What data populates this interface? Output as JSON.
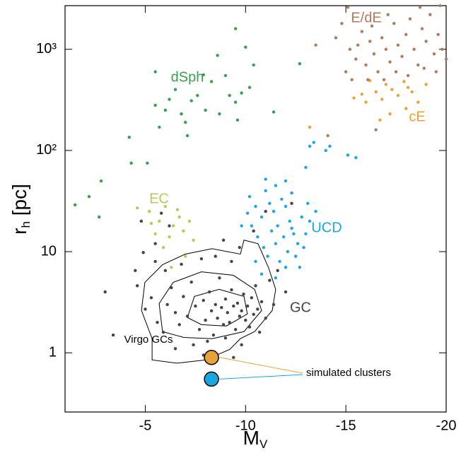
{
  "chart_data": {
    "type": "scatter",
    "xlabel": [
      "M",
      "V"
    ],
    "ylabel": [
      "r",
      "h",
      " [pc]"
    ],
    "xlim": [
      -1,
      -20
    ],
    "ylim": [
      0.26,
      2700
    ],
    "log_y": true,
    "xticks": [
      -5,
      -10,
      -15,
      -20
    ],
    "yticks": [
      1,
      10,
      {
        "value": 100,
        "label": "10²"
      },
      {
        "value": 1000,
        "label": "10³"
      }
    ],
    "series": [
      {
        "name": "dSph",
        "color": "#3a9e4f",
        "x": [
          -1.5,
          -2.8,
          -2.7,
          -2.2,
          -4.3,
          -4.2,
          -5.1,
          -5.7,
          -6.2,
          -6.5,
          -6.8,
          -7,
          -7.3,
          -7.6,
          -7.9,
          -8.3,
          -8.6,
          -8.7,
          -9.2,
          -9.5,
          -9.5,
          -10,
          -9.8,
          -10.4,
          -8,
          -6,
          -5.5,
          -7.1,
          -5.5,
          -9,
          -12.7,
          -11.4,
          -10.2,
          -9.6
        ],
        "y": [
          29,
          50,
          22,
          35,
          75,
          135,
          75,
          170,
          320,
          400,
          230,
          190,
          310,
          350,
          560,
          480,
          870,
          230,
          350,
          300,
          1600,
          1050,
          370,
          700,
          250,
          250,
          280,
          140,
          600,
          550,
          720,
          240,
          420,
          200
        ]
      },
      {
        "name": "EC",
        "color": "#b8c95a",
        "x": [
          -4.6,
          -5.2,
          -5.5,
          -5.7,
          -6,
          -6.2,
          -6.4,
          -6.7,
          -6.9,
          -7.2,
          -7.4,
          -5.9,
          -6.6,
          -7.0,
          -5.3,
          -6.3
        ],
        "y": [
          27,
          25,
          15,
          20,
          28,
          14,
          18,
          22,
          16,
          20,
          13,
          11,
          26,
          9,
          19,
          7
        ]
      },
      {
        "name": "GC",
        "color": "#444444",
        "x": [
          -3.0,
          -3.4,
          -4.6,
          -5.0,
          -5.3,
          -5.6,
          -5.9,
          -6.1,
          -6.3,
          -6.5,
          -6.7,
          -6.9,
          -7.1,
          -7.3,
          -7.5,
          -7.7,
          -7.9,
          -8.0,
          -8.2,
          -8.3,
          -8.4,
          -8.5,
          -8.6,
          -8.7,
          -8.8,
          -8.9,
          -9.0,
          -9.1,
          -9.2,
          -9.3,
          -9.4,
          -9.5,
          -9.6,
          -9.7,
          -9.8,
          -9.9,
          -10.0,
          -10.1,
          -10.2,
          -10.3,
          -10.4,
          -10.5,
          -10.6,
          -10.7,
          -10.8,
          -11.0,
          -11.2,
          -11.4,
          -11.6,
          -12.0,
          -8.1,
          -9.0,
          -9.8,
          -7.4,
          -6.0,
          -5.5,
          -6.8,
          -7.8,
          -8.5,
          -9.3,
          -4.5,
          -5.5,
          -6.2,
          -4.8,
          -5.8,
          -4.9,
          -8.9,
          -9.7,
          -10.4,
          -11.0,
          -12.3,
          -7.9,
          -9.4,
          -6.5
        ],
        "y": [
          4.0,
          1.5,
          4.6,
          2.7,
          3.5,
          2.0,
          1.6,
          3.0,
          4.4,
          2.5,
          1.9,
          3.6,
          2.3,
          5.0,
          2.9,
          1.7,
          3.3,
          2.1,
          4.0,
          2.6,
          1.5,
          3.0,
          2.2,
          5.5,
          2.8,
          1.9,
          3.4,
          2.5,
          2.0,
          4.2,
          2.9,
          1.7,
          3.1,
          2.3,
          2.6,
          3.8,
          2.1,
          2.9,
          1.8,
          3.5,
          2.4,
          4.6,
          2.7,
          1.6,
          3.2,
          2.2,
          5.2,
          3.0,
          6.5,
          4.0,
          1.3,
          1.4,
          1.2,
          1.2,
          6.5,
          8.0,
          7.5,
          8.5,
          9.0,
          8.0,
          6.5,
          12,
          18,
          20,
          24,
          9.8,
          13,
          11,
          16,
          25,
          30,
          0.95,
          0.9,
          1.1
        ]
      },
      {
        "name": "UCD",
        "color": "#1aa7e0",
        "x": [
          -10.2,
          -10.5,
          -10.8,
          -11,
          -11.2,
          -11.4,
          -11.6,
          -11.8,
          -12,
          -12.2,
          -12.4,
          -12.6,
          -12.8,
          -10.6,
          -10.9,
          -11.1,
          -11.3,
          -11.5,
          -11.7,
          -11.9,
          -12.1,
          -12.3,
          -12.5,
          -12.7,
          -12.9,
          -13,
          -13.2,
          -10.3,
          -10.1,
          -11,
          -12,
          -12.3,
          -11.5,
          -13.1,
          -13.5,
          -13,
          -14,
          -13.2,
          -15.5,
          -15.1,
          -14.2,
          -13.4,
          -9.8,
          -10.5,
          -10.8,
          -11.5,
          -12
        ],
        "y": [
          35,
          28,
          22,
          40,
          30,
          25,
          18,
          33,
          28,
          20,
          15,
          12,
          22,
          14,
          11,
          9,
          16,
          12,
          8,
          14,
          10,
          17,
          9,
          7,
          11,
          15,
          20,
          18,
          24,
          52,
          50,
          38,
          45,
          30,
          25,
          68,
          100,
          110,
          85,
          90,
          110,
          120,
          18,
          8,
          6,
          5.5,
          7
        ]
      },
      {
        "name": "cE",
        "color": "#e8a23a",
        "x": [
          -16.2,
          -16.5,
          -16.8,
          -17,
          -17.3,
          -17.6,
          -17.9,
          -18.1,
          -18.3,
          -18.6,
          -16,
          -15.4,
          -17.2,
          -18,
          -19,
          -16.7,
          -15.8,
          -13.2
        ],
        "y": [
          490,
          380,
          320,
          450,
          400,
          350,
          480,
          420,
          380,
          300,
          300,
          330,
          230,
          260,
          450,
          200,
          360,
          170
        ]
      },
      {
        "name": "E/dE",
        "color": "#b07a5e",
        "x": [
          -15.2,
          -15.5,
          -15.8,
          -16,
          -16.2,
          -16.4,
          -16.6,
          -16.8,
          -17,
          -17.2,
          -17.4,
          -17.6,
          -17.8,
          -18,
          -18.2,
          -18.4,
          -18.6,
          -18.8,
          -19,
          -19.2,
          -19.4,
          -19.6,
          -19.8,
          -20,
          -15,
          -15.3,
          -15.6,
          -16.1,
          -16.9,
          -17.5,
          -18.1,
          -18.9,
          -19.5,
          -16.3,
          -17.1,
          -18.7,
          -19.7,
          -15.1,
          -14.5,
          -13.5,
          -14.8,
          -16.5,
          -14.1
        ],
        "y": [
          1000,
          800,
          1500,
          700,
          1200,
          900,
          600,
          1300,
          1000,
          750,
          1800,
          1100,
          850,
          1400,
          2000,
          1000,
          700,
          1600,
          1200,
          2200,
          900,
          1400,
          1000,
          800,
          600,
          500,
          1100,
          500,
          500,
          600,
          550,
          650,
          600,
          1700,
          2200,
          2600,
          2700,
          2600,
          1300,
          1100,
          1800,
          160,
          140
        ]
      }
    ],
    "contour_label": "Virgo GCs",
    "contours": [
      {
        "x": [
          -5.34,
          -5.34,
          -4.81,
          -4.98,
          -5.86,
          -6.99,
          -8.33,
          -9.74,
          -9.92,
          -10.62,
          -11.15,
          -11.5,
          -11.33,
          -10.45,
          -9.74,
          -9.21,
          -7.98,
          -6.57
        ],
        "y": [
          0.85,
          1.38,
          2.62,
          4.97,
          7.43,
          9.45,
          10.7,
          9.45,
          13.0,
          12.0,
          6.9,
          4.24,
          2.62,
          1.62,
          1.38,
          1.08,
          0.85,
          0.79
        ]
      },
      {
        "x": [
          -5.86,
          -5.69,
          -6.39,
          -7.8,
          -9.39,
          -10.45,
          -10.8,
          -9.92,
          -8.33,
          -6.92
        ],
        "y": [
          1.62,
          3.07,
          4.97,
          6.32,
          5.84,
          4.24,
          2.62,
          1.62,
          1.38,
          1.42
        ]
      },
      {
        "x": [
          -7.1,
          -7.45,
          -8.68,
          -9.92,
          -10.09,
          -9.04,
          -7.8
        ],
        "y": [
          2.23,
          3.61,
          4.24,
          3.61,
          2.42,
          1.84,
          1.9
        ]
      }
    ],
    "simulated": {
      "label": "simulated clusters",
      "x": [
        -8.3,
        -8.3
      ],
      "y": [
        0.9,
        0.55
      ],
      "colors": [
        "#e8a23a",
        "#1aa7e0"
      ]
    }
  }
}
